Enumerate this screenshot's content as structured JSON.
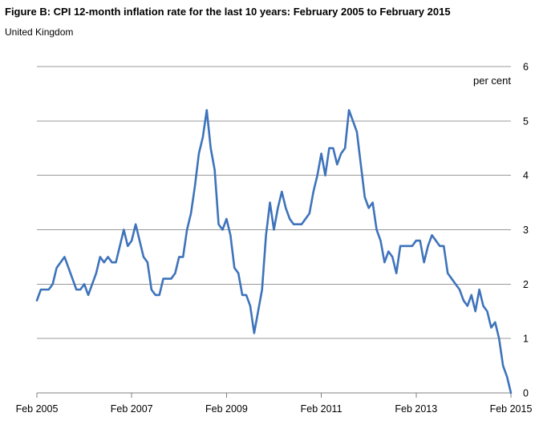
{
  "header": {
    "title": "Figure B: CPI 12-month inflation rate for the last 10 years: February 2005 to February 2015",
    "subtitle": "United Kingdom"
  },
  "chart_data": {
    "type": "line",
    "title": "Figure B: CPI 12-month inflation rate for the last 10 years: February 2005 to February 2015",
    "subtitle": "United Kingdom",
    "unit_label": "per cent",
    "ylim": [
      0,
      6
    ],
    "y_ticks": [
      6,
      5,
      4,
      3,
      2,
      1,
      0
    ],
    "y_axis_side": "right",
    "grid": "horizontal",
    "legend": "none",
    "x_ticks": [
      {
        "label": "Feb 2005",
        "month_index": 0
      },
      {
        "label": "Feb 2007",
        "month_index": 24
      },
      {
        "label": "Feb 2009",
        "month_index": 48
      },
      {
        "label": "Feb 2011",
        "month_index": 72
      },
      {
        "label": "Feb 2013",
        "month_index": 96
      },
      {
        "label": "Feb 2015",
        "month_index": 120
      }
    ],
    "series": [
      {
        "name": "CPI 12-month inflation rate",
        "start": "Feb 2005",
        "end": "Feb 2015",
        "frequency": "monthly",
        "values": [
          1.7,
          1.9,
          1.9,
          1.9,
          2.0,
          2.3,
          2.4,
          2.5,
          2.3,
          2.1,
          1.9,
          1.9,
          2.0,
          1.8,
          2.0,
          2.2,
          2.5,
          2.4,
          2.5,
          2.4,
          2.4,
          2.7,
          3.0,
          2.7,
          2.8,
          3.1,
          2.8,
          2.5,
          2.4,
          1.9,
          1.8,
          1.8,
          2.1,
          2.1,
          2.1,
          2.2,
          2.5,
          2.5,
          3.0,
          3.3,
          3.8,
          4.4,
          4.7,
          5.2,
          4.5,
          4.1,
          3.1,
          3.0,
          3.2,
          2.9,
          2.3,
          2.2,
          1.8,
          1.8,
          1.6,
          1.1,
          1.5,
          1.9,
          2.9,
          3.5,
          3.0,
          3.4,
          3.7,
          3.4,
          3.2,
          3.1,
          3.1,
          3.1,
          3.2,
          3.3,
          3.7,
          4.0,
          4.4,
          4.0,
          4.5,
          4.5,
          4.2,
          4.4,
          4.5,
          5.2,
          5.0,
          4.8,
          4.2,
          3.6,
          3.4,
          3.5,
          3.0,
          2.8,
          2.4,
          2.6,
          2.5,
          2.2,
          2.7,
          2.7,
          2.7,
          2.7,
          2.8,
          2.8,
          2.4,
          2.7,
          2.9,
          2.8,
          2.7,
          2.7,
          2.2,
          2.1,
          2.0,
          1.9,
          1.7,
          1.6,
          1.8,
          1.5,
          1.9,
          1.6,
          1.5,
          1.2,
          1.3,
          1.0,
          0.5,
          0.3,
          0.0
        ]
      }
    ],
    "colors": {
      "line": "#3e73bb",
      "gridline": "#999999",
      "axis": "#808080",
      "text": "#000000"
    }
  }
}
